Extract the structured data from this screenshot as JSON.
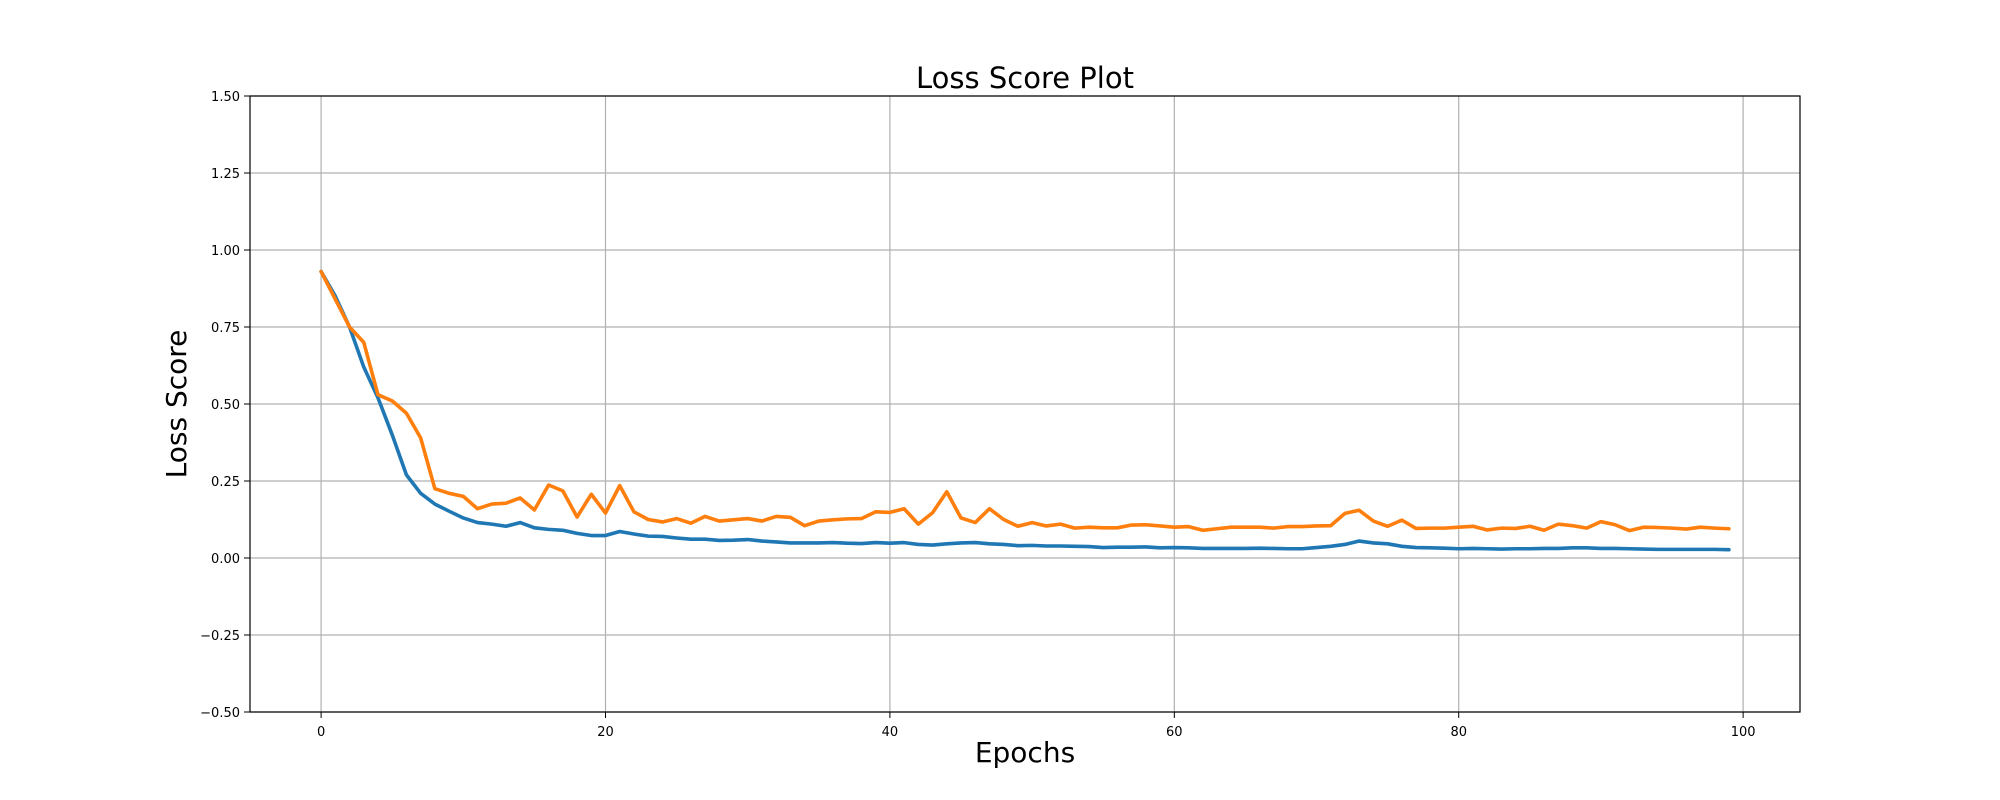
{
  "chart_data": {
    "type": "line",
    "title": "Loss Score Plot",
    "xlabel": "Epochs",
    "ylabel": "Loss Score",
    "xlim": [
      -5,
      104
    ],
    "ylim": [
      -0.5,
      1.5
    ],
    "xticks": [
      0,
      20,
      40,
      60,
      80,
      100
    ],
    "xtick_labels": [
      "0",
      "20",
      "40",
      "60",
      "80",
      "100"
    ],
    "yticks": [
      -0.5,
      -0.25,
      0,
      0.25,
      0.5,
      0.75,
      1.0,
      1.25,
      1.5
    ],
    "ytick_labels": [
      "−0.50",
      "−0.25",
      "0.00",
      "0.25",
      "0.50",
      "0.75",
      "1.00",
      "1.25",
      "1.50"
    ],
    "grid": true,
    "series": [
      {
        "color": "#1f77b4",
        "values": [
          0.93,
          0.85,
          0.75,
          0.62,
          0.52,
          0.4,
          0.27,
          0.21,
          0.175,
          0.152,
          0.13,
          0.115,
          0.11,
          0.103,
          0.115,
          0.098,
          0.093,
          0.09,
          0.08,
          0.073,
          0.073,
          0.086,
          0.078,
          0.071,
          0.07,
          0.065,
          0.061,
          0.061,
          0.057,
          0.058,
          0.06,
          0.055,
          0.052,
          0.049,
          0.049,
          0.049,
          0.05,
          0.048,
          0.047,
          0.05,
          0.048,
          0.05,
          0.044,
          0.042,
          0.046,
          0.049,
          0.05,
          0.046,
          0.044,
          0.04,
          0.041,
          0.039,
          0.039,
          0.038,
          0.037,
          0.034,
          0.035,
          0.035,
          0.036,
          0.033,
          0.034,
          0.033,
          0.031,
          0.031,
          0.031,
          0.031,
          0.032,
          0.031,
          0.03,
          0.03,
          0.034,
          0.038,
          0.044,
          0.055,
          0.049,
          0.046,
          0.038,
          0.034,
          0.033,
          0.032,
          0.03,
          0.031,
          0.03,
          0.029,
          0.03,
          0.03,
          0.031,
          0.031,
          0.033,
          0.033,
          0.031,
          0.031,
          0.03,
          0.029,
          0.028,
          0.028,
          0.028,
          0.028,
          0.028,
          0.027
        ]
      },
      {
        "color": "#ff7f0e",
        "values": [
          0.93,
          0.84,
          0.75,
          0.7,
          0.53,
          0.51,
          0.47,
          0.39,
          0.225,
          0.21,
          0.2,
          0.16,
          0.175,
          0.178,
          0.195,
          0.156,
          0.237,
          0.218,
          0.133,
          0.207,
          0.146,
          0.235,
          0.15,
          0.125,
          0.117,
          0.128,
          0.113,
          0.135,
          0.12,
          0.124,
          0.128,
          0.12,
          0.135,
          0.132,
          0.105,
          0.12,
          0.124,
          0.127,
          0.128,
          0.15,
          0.148,
          0.16,
          0.11,
          0.147,
          0.215,
          0.13,
          0.115,
          0.16,
          0.125,
          0.103,
          0.115,
          0.104,
          0.11,
          0.097,
          0.1,
          0.098,
          0.098,
          0.107,
          0.108,
          0.104,
          0.1,
          0.102,
          0.09,
          0.095,
          0.1,
          0.1,
          0.1,
          0.097,
          0.102,
          0.102,
          0.104,
          0.105,
          0.145,
          0.155,
          0.12,
          0.103,
          0.123,
          0.096,
          0.097,
          0.097,
          0.1,
          0.103,
          0.091,
          0.097,
          0.096,
          0.103,
          0.09,
          0.11,
          0.105,
          0.097,
          0.118,
          0.108,
          0.089,
          0.1,
          0.099,
          0.097,
          0.094,
          0.1,
          0.097,
          0.095
        ]
      }
    ]
  }
}
